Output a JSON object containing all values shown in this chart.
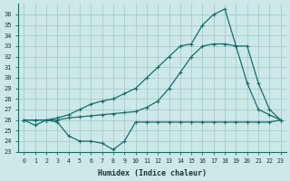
{
  "xlabel": "Humidex (Indice chaleur)",
  "bg_color": "#cce8e8",
  "grid_color": "#aacfcf",
  "line_color": "#1a6b6b",
  "xlim": [
    -0.5,
    23.5
  ],
  "ylim": [
    23,
    37
  ],
  "yticks": [
    23,
    24,
    25,
    26,
    27,
    28,
    29,
    30,
    31,
    32,
    33,
    34,
    35,
    36
  ],
  "xticks": [
    0,
    1,
    2,
    3,
    4,
    5,
    6,
    7,
    8,
    9,
    10,
    11,
    12,
    13,
    14,
    15,
    16,
    17,
    18,
    19,
    20,
    21,
    22,
    23
  ],
  "line1_x": [
    0,
    1,
    2,
    3,
    4,
    5,
    6,
    7,
    8,
    9,
    10,
    11,
    12,
    13,
    14,
    15,
    16,
    17,
    18,
    19,
    20,
    21,
    22,
    23
  ],
  "line1_y": [
    26,
    25.5,
    26,
    25.8,
    24.5,
    24.0,
    24.0,
    23.8,
    23.2,
    24.0,
    25.8,
    25.8,
    25.8,
    25.8,
    25.8,
    25.8,
    25.8,
    25.8,
    25.8,
    25.8,
    25.8,
    25.8,
    25.8,
    26.0
  ],
  "line2_x": [
    0,
    1,
    2,
    3,
    4,
    5,
    6,
    7,
    8,
    9,
    10,
    11,
    12,
    13,
    14,
    15,
    16,
    17,
    18,
    19,
    20,
    21,
    22,
    23
  ],
  "line2_y": [
    26,
    26,
    26,
    26.2,
    26.5,
    27,
    27.5,
    27.8,
    28,
    28.5,
    29,
    30,
    31,
    32,
    33,
    33.2,
    35.0,
    36.0,
    36.5,
    33.0,
    29.5,
    27.0,
    26.5,
    26.0
  ],
  "line3_x": [
    0,
    1,
    2,
    3,
    4,
    5,
    6,
    7,
    8,
    9,
    10,
    11,
    12,
    13,
    14,
    15,
    16,
    17,
    18,
    19,
    20,
    21,
    22,
    23
  ],
  "line3_y": [
    26,
    26,
    26,
    26,
    26.2,
    26.3,
    26.4,
    26.5,
    26.6,
    26.7,
    26.8,
    27.2,
    27.8,
    29.0,
    30.5,
    32.0,
    33.0,
    33.2,
    33.2,
    33.0,
    33.0,
    29.5,
    27.0,
    26.0
  ]
}
